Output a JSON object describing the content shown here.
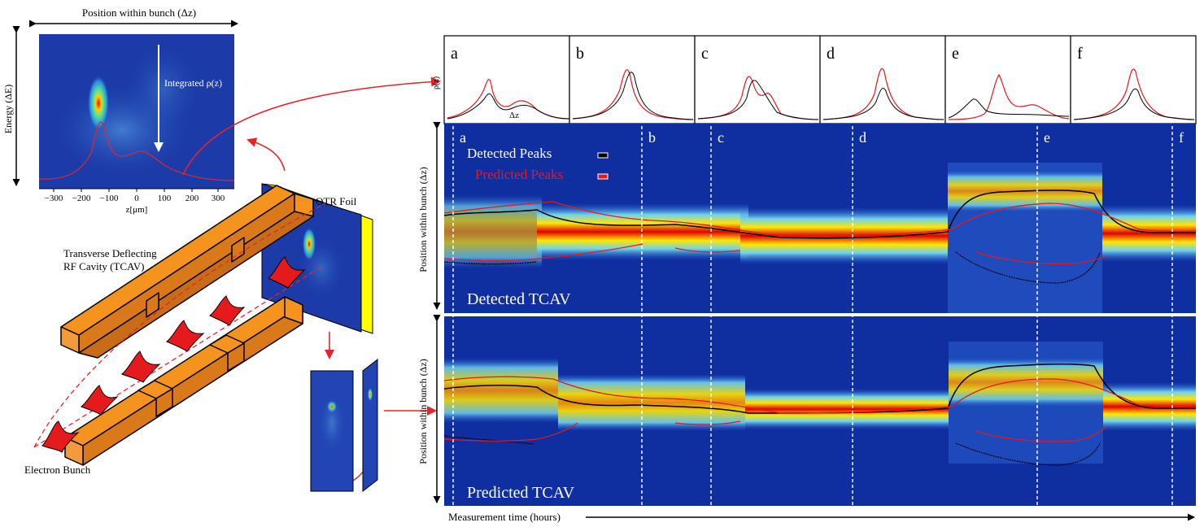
{
  "spectrometer": {
    "top_label": "Position within bunch (Δz)",
    "side_label": "Energy (ΔE)",
    "integrated_label": "Integrated ρ(z)",
    "x_ticks": [
      "−300",
      "−200",
      "−100",
      "0",
      "100",
      "200",
      "300"
    ],
    "x_axis_label": "z[μm]"
  },
  "setup": {
    "otr_label": "OTR Foil",
    "tcav_label_line1": "Transverse Deflecting",
    "tcav_label_line2": "RF Cavity (TCAV)",
    "electron_label": "Electron Bunch"
  },
  "profiles": {
    "y_label": "ρ(z)",
    "x_label": "Δz",
    "panels": [
      "a",
      "b",
      "c",
      "d",
      "e",
      "f"
    ]
  },
  "detected": {
    "y_label": "Position within bunch (Δz)",
    "title": "Detected TCAV",
    "marks": [
      "a",
      "b",
      "c",
      "d",
      "e",
      "f"
    ],
    "legend": {
      "detected": "Detected Peaks",
      "predicted": "Predicted Peaks"
    }
  },
  "predicted": {
    "y_label": "Position within bunch (Δz)",
    "title": "Predicted TCAV"
  },
  "time_axis": {
    "label": "Measurement time (hours)"
  },
  "colors": {
    "detected_line": "#000000",
    "predicted_line": "#e41a1c",
    "arrow": "#e3262b",
    "orange": "#f5931f",
    "yellow": "#ffff00",
    "background_blue": "#0f2fa0"
  }
}
